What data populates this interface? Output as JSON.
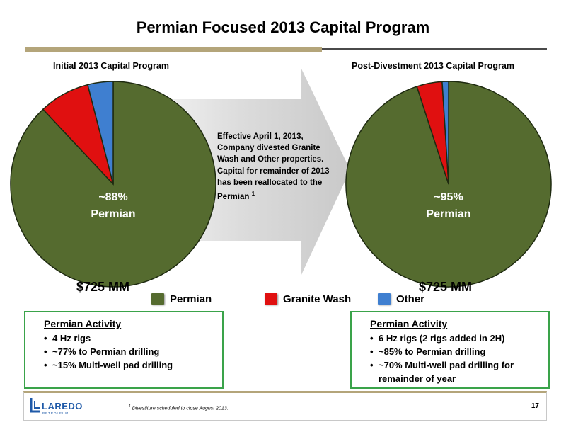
{
  "title": "Permian Focused 2013 Capital Program",
  "note": {
    "text": "Effective April 1, 2013, Company divested Granite Wash and Other properties. Capital for remainder of 2013 has been reallocated to the Permian",
    "superscript": "1"
  },
  "legend": [
    "Permian",
    "Granite Wash",
    "Other"
  ],
  "colors": {
    "Permian": "#556b2f",
    "Granite Wash": "#e01010",
    "Other": "#3f7fd0",
    "accent_green": "#3aa34a",
    "title_bar": "#b4a57a"
  },
  "chart_data": [
    {
      "type": "pie",
      "title": "Initial 2013 Capital Program",
      "categories": [
        "Permian",
        "Granite Wash",
        "Other"
      ],
      "values": [
        88,
        8,
        4
      ],
      "center_label": [
        "~88%",
        "Permian"
      ],
      "total_label": "$725 MM"
    },
    {
      "type": "pie",
      "title": "Post-Divestment 2013 Capital Program",
      "categories": [
        "Permian",
        "Granite Wash",
        "Other"
      ],
      "values": [
        95,
        4,
        1
      ],
      "center_label": [
        "~95%",
        "Permian"
      ],
      "total_label": "$725 MM"
    }
  ],
  "activity_left": {
    "heading": "Permian Activity",
    "items": [
      "4 Hz rigs",
      "~77% to Permian drilling",
      "~15% Multi-well pad drilling"
    ]
  },
  "activity_right": {
    "heading": "Permian Activity",
    "items": [
      "6 Hz rigs (2 rigs added in 2H)",
      "~85% to Permian drilling",
      "~70% Multi-well pad drilling for remainder of year"
    ]
  },
  "footer": {
    "logo_text": "LAREDO",
    "logo_sub": "PETROLEUM",
    "footnote_mark": "1",
    "footnote": "Divestiture scheduled to close August 2013.",
    "page_number": "17"
  }
}
